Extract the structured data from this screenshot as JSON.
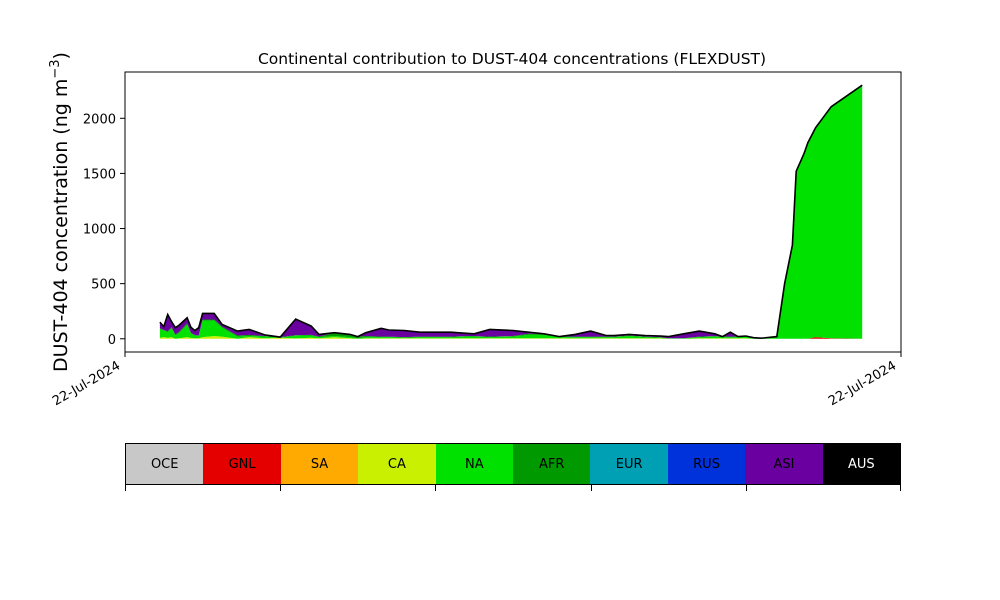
{
  "chart_data": {
    "type": "area",
    "title": "Continental contribution to DUST-404 concentrations (FLEXDUST)",
    "ylabel": "DUST-404 concentration (ng m",
    "ylabel_sup": "−3",
    "ylabel_close": ")",
    "xlabel": "",
    "xtick_labels": [
      "22-Jul-2024",
      "22-Jul-2024"
    ],
    "ylim": [
      -120,
      2420
    ],
    "yticks": [
      0,
      500,
      1000,
      1500,
      2000
    ],
    "grid": false,
    "stacked": true,
    "x": [
      0.045,
      0.05,
      0.055,
      0.06,
      0.065,
      0.07,
      0.08,
      0.085,
      0.09,
      0.095,
      0.1,
      0.115,
      0.125,
      0.145,
      0.16,
      0.18,
      0.2,
      0.22,
      0.24,
      0.25,
      0.27,
      0.29,
      0.3,
      0.31,
      0.33,
      0.34,
      0.36,
      0.38,
      0.4,
      0.42,
      0.44,
      0.45,
      0.47,
      0.5,
      0.52,
      0.54,
      0.56,
      0.58,
      0.6,
      0.62,
      0.63,
      0.65,
      0.67,
      0.69,
      0.7,
      0.72,
      0.74,
      0.76,
      0.77,
      0.78,
      0.79,
      0.8,
      0.81,
      0.82,
      0.84,
      0.85,
      0.86,
      0.865,
      0.87,
      0.875,
      0.88,
      0.89,
      0.9,
      0.91,
      0.95
    ],
    "series": [
      {
        "name": "GNL",
        "color": "#e50000",
        "values": [
          0,
          0,
          0,
          0,
          0,
          0,
          0,
          0,
          0,
          0,
          0,
          0,
          0,
          0,
          0,
          0,
          0,
          0,
          0,
          0,
          0,
          0,
          0,
          0,
          0,
          0,
          0,
          0,
          0,
          0,
          0,
          0,
          0,
          0,
          0,
          0,
          0,
          0,
          0,
          0,
          0,
          0,
          0,
          0,
          0,
          0,
          0,
          0,
          0,
          0,
          0,
          0,
          0,
          0,
          0,
          0,
          0,
          0,
          0,
          0,
          0,
          15,
          10,
          5,
          0
        ]
      },
      {
        "name": "CA",
        "color": "#c8f000",
        "values": [
          10,
          15,
          10,
          15,
          0,
          5,
          15,
          8,
          5,
          5,
          15,
          25,
          20,
          0,
          15,
          5,
          10,
          3,
          10,
          5,
          15,
          5,
          0,
          5,
          5,
          5,
          5,
          5,
          5,
          5,
          5,
          5,
          5,
          5,
          5,
          5,
          5,
          5,
          5,
          5,
          5,
          5,
          5,
          5,
          0,
          0,
          5,
          5,
          5,
          5,
          5,
          5,
          0,
          0,
          0,
          0,
          0,
          0,
          0,
          0,
          0,
          0,
          0,
          0,
          0
        ]
      },
      {
        "name": "NA",
        "color": "#00e100",
        "values": [
          80,
          60,
          50,
          80,
          30,
          50,
          110,
          40,
          25,
          20,
          150,
          140,
          80,
          20,
          10,
          15,
          0,
          25,
          20,
          10,
          10,
          10,
          5,
          10,
          10,
          10,
          5,
          10,
          10,
          10,
          15,
          15,
          10,
          15,
          30,
          30,
          10,
          10,
          10,
          10,
          10,
          20,
          10,
          5,
          5,
          5,
          10,
          15,
          10,
          10,
          10,
          15,
          5,
          0,
          20,
          500,
          850,
          1520,
          1600,
          1680,
          1780,
          1900,
          2000,
          2100,
          2300
        ]
      },
      {
        "name": "AFR",
        "color": "#009a00",
        "values": [
          5,
          5,
          10,
          10,
          10,
          10,
          15,
          5,
          5,
          5,
          10,
          10,
          10,
          10,
          10,
          5,
          5,
          5,
          5,
          5,
          30,
          25,
          15,
          10,
          5,
          5,
          5,
          5,
          5,
          5,
          5,
          5,
          5,
          5,
          10,
          10,
          5,
          5,
          5,
          5,
          5,
          5,
          5,
          5,
          0,
          0,
          5,
          5,
          5,
          5,
          5,
          5,
          5,
          5,
          0,
          0,
          0,
          0,
          0,
          0,
          0,
          0,
          0,
          0,
          0
        ]
      },
      {
        "name": "ASI",
        "color": "#6a00a0",
        "values": [
          55,
          30,
          150,
          50,
          60,
          60,
          50,
          50,
          40,
          70,
          55,
          55,
          20,
          40,
          50,
          10,
          0,
          145,
          80,
          20,
          0,
          0,
          0,
          30,
          75,
          60,
          60,
          40,
          40,
          40,
          25,
          20,
          65,
          50,
          15,
          0,
          0,
          20,
          50,
          10,
          10,
          10,
          10,
          10,
          15,
          40,
          50,
          20,
          0,
          40,
          0,
          0,
          0,
          0,
          0,
          0,
          0,
          0,
          0,
          0,
          0,
          0,
          0,
          0,
          0
        ]
      }
    ],
    "legend": {
      "placement": "below",
      "labels": [
        "OCE",
        "GNL",
        "SA",
        "CA",
        "NA",
        "AFR",
        "EUR",
        "RUS",
        "ASI",
        "AUS"
      ],
      "colors": [
        "#c8c8c8",
        "#e50000",
        "#ffaa00",
        "#c8f000",
        "#00e100",
        "#009a00",
        "#00a0b4",
        "#0032dc",
        "#6a00a0",
        "#000000"
      ]
    }
  }
}
